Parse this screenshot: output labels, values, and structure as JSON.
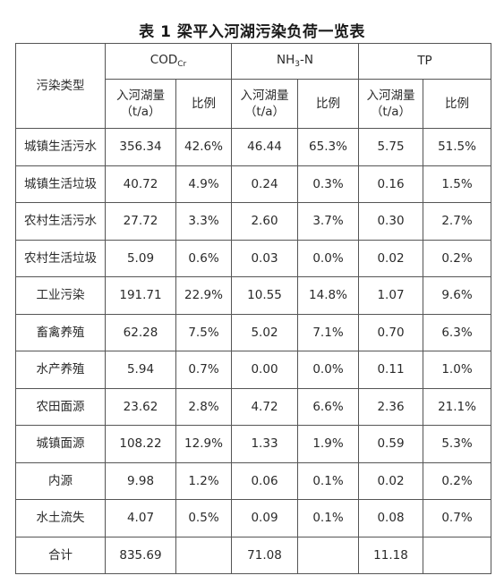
{
  "title": "表 1 梁平入河湖污染负荷一览表",
  "header": {
    "type_label": "污染类型",
    "groups": [
      {
        "main": "COD",
        "sub": "Cr"
      },
      {
        "main_pre": "NH",
        "sub": "3",
        "main_post": "-N"
      },
      {
        "main": "TP"
      }
    ],
    "load_line1": "入河湖量",
    "load_line2": "（t/a）",
    "ratio": "比例"
  },
  "rows": [
    {
      "type": "城镇生活污水",
      "cod": "356.34",
      "cod_pct": "42.6%",
      "nh3": "46.44",
      "nh3_pct": "65.3%",
      "tp": "5.75",
      "tp_pct": "51.5%"
    },
    {
      "type": "城镇生活垃圾",
      "cod": "40.72",
      "cod_pct": "4.9%",
      "nh3": "0.24",
      "nh3_pct": "0.3%",
      "tp": "0.16",
      "tp_pct": "1.5%"
    },
    {
      "type": "农村生活污水",
      "cod": "27.72",
      "cod_pct": "3.3%",
      "nh3": "2.60",
      "nh3_pct": "3.7%",
      "tp": "0.30",
      "tp_pct": "2.7%"
    },
    {
      "type": "农村生活垃圾",
      "cod": "5.09",
      "cod_pct": "0.6%",
      "nh3": "0.03",
      "nh3_pct": "0.0%",
      "tp": "0.02",
      "tp_pct": "0.2%"
    },
    {
      "type": "工业污染",
      "cod": "191.71",
      "cod_pct": "22.9%",
      "nh3": "10.55",
      "nh3_pct": "14.8%",
      "tp": "1.07",
      "tp_pct": "9.6%"
    },
    {
      "type": "畜禽养殖",
      "cod": "62.28",
      "cod_pct": "7.5%",
      "nh3": "5.02",
      "nh3_pct": "7.1%",
      "tp": "0.70",
      "tp_pct": "6.3%"
    },
    {
      "type": "水产养殖",
      "cod": "5.94",
      "cod_pct": "0.7%",
      "nh3": "0.00",
      "nh3_pct": "0.0%",
      "tp": "0.11",
      "tp_pct": "1.0%"
    },
    {
      "type": "农田面源",
      "cod": "23.62",
      "cod_pct": "2.8%",
      "nh3": "4.72",
      "nh3_pct": "6.6%",
      "tp": "2.36",
      "tp_pct": "21.1%"
    },
    {
      "type": "城镇面源",
      "cod": "108.22",
      "cod_pct": "12.9%",
      "nh3": "1.33",
      "nh3_pct": "1.9%",
      "tp": "0.59",
      "tp_pct": "5.3%"
    },
    {
      "type": "内源",
      "cod": "9.98",
      "cod_pct": "1.2%",
      "nh3": "0.06",
      "nh3_pct": "0.1%",
      "tp": "0.02",
      "tp_pct": "0.2%"
    },
    {
      "type": "水土流失",
      "cod": "4.07",
      "cod_pct": "0.5%",
      "nh3": "0.09",
      "nh3_pct": "0.1%",
      "tp": "0.08",
      "tp_pct": "0.7%"
    },
    {
      "type": "合计",
      "cod": "835.69",
      "cod_pct": "",
      "nh3": "71.08",
      "nh3_pct": "",
      "tp": "11.18",
      "tp_pct": ""
    }
  ]
}
